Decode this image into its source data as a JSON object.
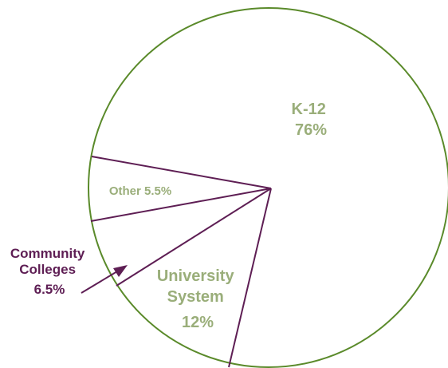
{
  "chart_data": {
    "type": "pie",
    "title": "",
    "slices": [
      {
        "label_lines": [
          "K-12",
          "76%"
        ],
        "value": 76
      },
      {
        "label_lines": [
          "University",
          "System",
          "12%"
        ],
        "value": 12
      },
      {
        "label_lines": [
          "Community",
          "Colleges",
          "6.5%"
        ],
        "value": 6.5
      },
      {
        "label_lines": [
          "Other 5.5%"
        ],
        "value": 5.5
      }
    ],
    "legend": "none",
    "colors": {
      "outline": "#5a8a2a",
      "divider": "#5e1e54",
      "inside_label": "#9aae7a",
      "outside_label": "#5e1e54",
      "fill": "#ffffff"
    }
  }
}
